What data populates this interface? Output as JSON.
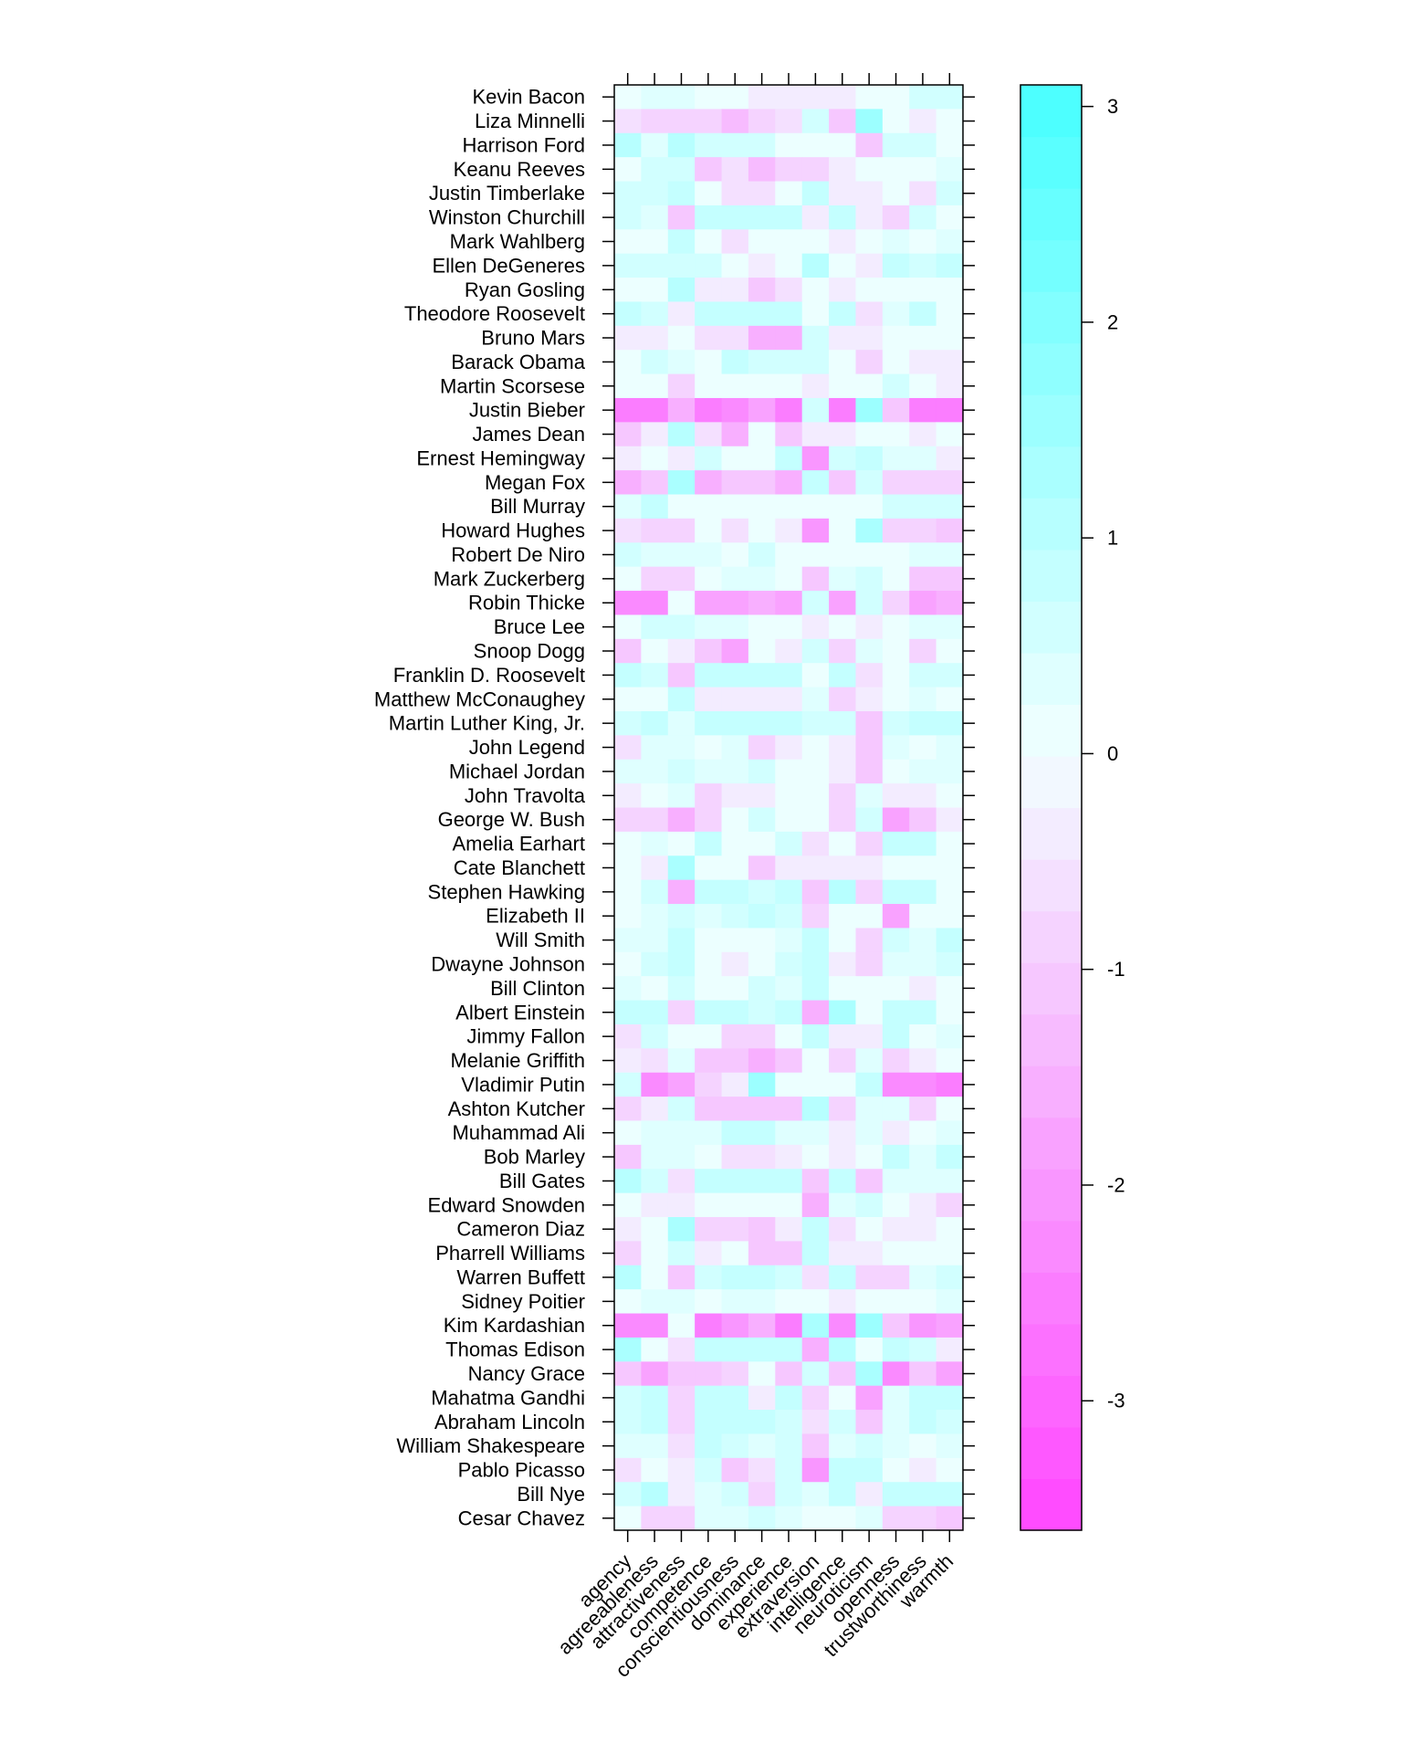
{
  "chart_data": {
    "type": "heatmap",
    "x_categories": [
      "agency",
      "agreeableness",
      "attractiveness",
      "competence",
      "conscientiousness",
      "dominance",
      "experience",
      "extraversion",
      "intelligence",
      "neuroticism",
      "openness",
      "trustworthiness",
      "warmth"
    ],
    "y_categories": [
      "Kevin Bacon",
      "Liza Minnelli",
      "Harrison Ford",
      "Keanu Reeves",
      "Justin Timberlake",
      "Winston Churchill",
      "Mark Wahlberg",
      "Ellen DeGeneres",
      "Ryan Gosling",
      "Theodore Roosevelt",
      "Bruno Mars",
      "Barack Obama",
      "Martin Scorsese",
      "Justin Bieber",
      "James Dean",
      "Ernest Hemingway",
      "Megan Fox",
      "Bill Murray",
      "Howard Hughes",
      "Robert De Niro",
      "Mark Zuckerberg",
      "Robin Thicke",
      "Bruce Lee",
      "Snoop Dogg",
      "Franklin D. Roosevelt",
      "Matthew McConaughey",
      "Martin Luther King, Jr.",
      "John Legend",
      "Michael Jordan",
      "John Travolta",
      "George W. Bush",
      "Amelia Earhart",
      "Cate Blanchett",
      "Stephen Hawking",
      "Elizabeth II",
      "Will Smith",
      "Dwayne Johnson",
      "Bill Clinton",
      "Albert Einstein",
      "Jimmy Fallon",
      "Melanie Griffith",
      "Vladimir Putin",
      "Ashton Kutcher",
      "Muhammad Ali",
      "Bob Marley",
      "Bill Gates",
      "Edward Snowden",
      "Cameron Diaz",
      "Pharrell Williams",
      "Warren Buffett",
      "Sidney Poitier",
      "Kim Kardashian",
      "Thomas Edison",
      "Nancy Grace",
      "Mahatma Gandhi",
      "Abraham Lincoln",
      "William Shakespeare",
      "Pablo Picasso",
      "Bill Nye",
      "Cesar Chavez"
    ],
    "values": [
      [
        0.2,
        0.4,
        0.4,
        0.2,
        0.2,
        -0.3,
        -0.3,
        -0.3,
        -0.3,
        0.2,
        0.2,
        0.5,
        0.7
      ],
      [
        -0.5,
        -0.8,
        -0.8,
        -0.8,
        -1.3,
        -0.8,
        -0.5,
        0.5,
        -1.0,
        1.6,
        0.2,
        -0.3,
        0.2
      ],
      [
        1.0,
        0.4,
        1.0,
        0.5,
        0.5,
        0.5,
        0.2,
        0.2,
        0.2,
        -1.0,
        0.5,
        0.7,
        0.2
      ],
      [
        0.2,
        0.5,
        0.5,
        -1.0,
        -0.5,
        -1.3,
        -0.8,
        -0.8,
        -0.3,
        0.2,
        0.2,
        0.2,
        0.4
      ],
      [
        0.5,
        0.5,
        0.8,
        0.2,
        -0.5,
        -0.5,
        0.2,
        0.8,
        -0.3,
        -0.3,
        0.2,
        -0.5,
        0.5
      ],
      [
        0.5,
        0.4,
        -1.2,
        0.8,
        0.8,
        0.8,
        0.8,
        -0.3,
        0.8,
        -0.3,
        -0.8,
        0.5,
        0.2
      ],
      [
        0.2,
        0.2,
        0.8,
        0.2,
        -0.5,
        0.2,
        0.2,
        0.2,
        -0.3,
        0.2,
        0.4,
        0.2,
        0.4
      ],
      [
        0.7,
        0.7,
        0.5,
        0.5,
        0.2,
        -0.3,
        0.2,
        1.0,
        0.2,
        -0.3,
        0.9,
        0.5,
        0.8
      ],
      [
        0.2,
        0.2,
        1.0,
        -0.3,
        -0.3,
        -1.2,
        -0.5,
        0.2,
        -0.3,
        0.2,
        0.2,
        0.2,
        0.2
      ],
      [
        0.8,
        0.5,
        -0.3,
        0.8,
        0.8,
        0.8,
        0.8,
        0.2,
        0.8,
        -0.5,
        0.4,
        0.8,
        0.2
      ],
      [
        -0.3,
        -0.3,
        0.2,
        -0.5,
        -0.5,
        -1.5,
        -1.5,
        0.5,
        -0.3,
        -0.3,
        0.2,
        0.2,
        0.2
      ],
      [
        0.2,
        0.5,
        0.4,
        0.2,
        0.8,
        0.5,
        0.5,
        0.5,
        0.2,
        -0.8,
        0.2,
        -0.3,
        -0.3
      ],
      [
        0.2,
        0.2,
        -0.8,
        0.2,
        0.2,
        0.2,
        0.2,
        -0.3,
        0.2,
        0.2,
        0.5,
        0.2,
        -0.3
      ],
      [
        -2.6,
        -2.6,
        -1.5,
        -2.5,
        -2.2,
        -1.9,
        -2.5,
        0.5,
        -2.6,
        1.6,
        -1.0,
        -2.6,
        -2.6
      ],
      [
        -1.2,
        -0.3,
        1.0,
        -0.5,
        -1.5,
        0.2,
        -1.0,
        -0.3,
        -0.3,
        0.2,
        0.2,
        -0.3,
        0.2
      ],
      [
        -0.3,
        0.2,
        -0.3,
        0.5,
        0.2,
        0.2,
        0.8,
        -2.0,
        0.5,
        0.8,
        0.4,
        0.4,
        -0.3
      ],
      [
        -1.5,
        -1.2,
        1.4,
        -1.5,
        -1.2,
        -1.2,
        -1.5,
        0.8,
        -1.2,
        0.5,
        -0.8,
        -0.8,
        -0.8
      ],
      [
        0.4,
        0.8,
        0.2,
        0.2,
        0.2,
        0.2,
        0.2,
        0.2,
        0.2,
        0.2,
        0.5,
        0.5,
        0.7
      ],
      [
        -0.5,
        -0.8,
        -0.8,
        0.2,
        -0.5,
        0.2,
        -0.3,
        -2.0,
        0.2,
        1.4,
        -0.8,
        -0.8,
        -1.2
      ],
      [
        0.5,
        0.4,
        0.4,
        0.4,
        0.2,
        0.5,
        0.2,
        0.2,
        0.2,
        0.2,
        0.2,
        0.4,
        0.4
      ],
      [
        0.2,
        -0.8,
        -0.8,
        0.2,
        0.4,
        0.4,
        0.2,
        -1.0,
        0.4,
        0.5,
        0.2,
        -1.0,
        -1.0
      ],
      [
        -2.2,
        -2.2,
        0.2,
        -1.8,
        -1.8,
        -1.6,
        -1.8,
        0.5,
        -1.8,
        0.5,
        -0.8,
        -1.8,
        -1.5
      ],
      [
        0.2,
        0.5,
        0.5,
        0.4,
        0.4,
        0.2,
        0.2,
        -0.3,
        0.2,
        -0.3,
        0.2,
        0.4,
        0.4
      ],
      [
        -1.0,
        0.2,
        -0.3,
        -1.0,
        -1.8,
        0.2,
        -0.3,
        0.5,
        -0.8,
        0.4,
        0.2,
        -0.8,
        0.2
      ],
      [
        0.8,
        0.5,
        -1.0,
        0.8,
        0.8,
        0.8,
        0.8,
        0.2,
        0.8,
        -0.5,
        0.2,
        0.5,
        0.5
      ],
      [
        0.2,
        0.2,
        0.8,
        -0.3,
        -0.3,
        -0.3,
        -0.3,
        0.4,
        -0.8,
        -0.3,
        0.2,
        0.4,
        0.2
      ],
      [
        0.5,
        0.8,
        0.4,
        0.8,
        0.8,
        0.8,
        0.8,
        0.5,
        0.5,
        -1.2,
        0.5,
        0.8,
        0.8
      ],
      [
        -0.5,
        0.4,
        0.4,
        0.2,
        0.4,
        -0.8,
        -0.3,
        0.2,
        -0.3,
        -1.0,
        0.4,
        0.2,
        0.4
      ],
      [
        0.4,
        0.4,
        0.5,
        0.4,
        0.4,
        0.5,
        0.2,
        0.2,
        -0.3,
        -1.0,
        0.2,
        0.4,
        0.4
      ],
      [
        -0.3,
        0.2,
        0.4,
        -0.8,
        -0.3,
        -0.3,
        0.2,
        0.2,
        -0.8,
        0.4,
        -0.3,
        -0.3,
        0.2
      ],
      [
        -0.8,
        -0.8,
        -1.5,
        -0.8,
        0.2,
        0.5,
        0.2,
        0.2,
        -0.8,
        0.5,
        -1.8,
        -1.2,
        -0.3
      ],
      [
        0.2,
        0.4,
        0.2,
        0.8,
        0.2,
        0.2,
        0.5,
        -0.5,
        0.2,
        -0.8,
        0.8,
        0.8,
        0.2
      ],
      [
        0.2,
        -0.3,
        1.4,
        0.2,
        0.2,
        -1.2,
        -0.3,
        -0.3,
        -0.3,
        -0.3,
        0.2,
        0.2,
        0.2
      ],
      [
        0.2,
        0.5,
        -1.5,
        0.8,
        0.8,
        0.5,
        0.8,
        -1.2,
        1.0,
        -0.8,
        0.8,
        0.8,
        0.2
      ],
      [
        0.2,
        0.4,
        0.5,
        0.4,
        0.5,
        0.8,
        0.5,
        -0.8,
        0.2,
        0.2,
        -1.8,
        0.2,
        0.2
      ],
      [
        0.4,
        0.4,
        0.8,
        0.2,
        0.2,
        0.2,
        0.4,
        0.8,
        0.2,
        -0.8,
        0.5,
        0.4,
        0.8
      ],
      [
        0.2,
        0.5,
        0.8,
        0.2,
        -0.3,
        0.2,
        0.5,
        0.8,
        -0.3,
        -0.8,
        0.4,
        0.4,
        0.5
      ],
      [
        0.4,
        0.2,
        0.5,
        0.2,
        0.2,
        0.5,
        0.4,
        0.8,
        0.2,
        0.2,
        0.2,
        -0.3,
        0.2
      ],
      [
        0.8,
        0.8,
        -0.8,
        0.8,
        0.8,
        0.5,
        0.8,
        -1.5,
        1.4,
        0.2,
        0.8,
        0.8,
        0.2
      ],
      [
        -0.5,
        0.5,
        0.2,
        0.2,
        -0.8,
        -0.8,
        0.2,
        0.8,
        -0.3,
        -0.3,
        0.8,
        0.2,
        0.4
      ],
      [
        -0.3,
        -0.5,
        0.4,
        -1.0,
        -1.0,
        -1.5,
        -1.2,
        0.2,
        -0.8,
        0.4,
        -0.8,
        -0.3,
        0.2
      ],
      [
        0.5,
        -2.2,
        -1.8,
        -0.8,
        -0.3,
        1.5,
        0.2,
        0.2,
        0.2,
        0.8,
        -2.2,
        -2.2,
        -2.6
      ],
      [
        -0.8,
        -0.3,
        0.5,
        -1.0,
        -1.2,
        -1.2,
        -1.2,
        1.0,
        -0.8,
        0.4,
        0.4,
        -0.8,
        0.2
      ],
      [
        0.2,
        0.4,
        0.4,
        0.4,
        0.8,
        0.8,
        0.4,
        0.4,
        -0.3,
        0.4,
        -0.3,
        0.2,
        0.4
      ],
      [
        -1.0,
        0.4,
        0.4,
        0.2,
        -0.5,
        -0.5,
        -0.3,
        0.2,
        -0.3,
        0.2,
        0.8,
        0.4,
        0.8
      ],
      [
        1.0,
        0.5,
        -0.5,
        0.8,
        0.8,
        0.8,
        0.8,
        -1.2,
        0.8,
        -1.0,
        0.4,
        0.4,
        0.4
      ],
      [
        0.2,
        -0.3,
        -0.3,
        0.2,
        0.2,
        0.2,
        0.2,
        -1.5,
        0.4,
        0.5,
        0.2,
        -0.3,
        -0.8
      ],
      [
        -0.3,
        0.2,
        1.4,
        -0.8,
        -0.8,
        -1.0,
        -0.3,
        0.8,
        -0.5,
        0.2,
        -0.3,
        -0.3,
        0.2
      ],
      [
        -0.8,
        0.2,
        0.5,
        -0.3,
        0.2,
        -1.0,
        -1.0,
        0.8,
        -0.3,
        -0.3,
        0.2,
        0.2,
        0.2
      ],
      [
        1.0,
        0.2,
        -1.2,
        0.5,
        0.8,
        0.8,
        0.5,
        -0.5,
        0.8,
        -0.8,
        -0.8,
        0.4,
        0.5
      ],
      [
        0.2,
        0.4,
        0.4,
        0.2,
        0.4,
        0.4,
        0.2,
        0.2,
        -0.3,
        0.2,
        0.2,
        0.2,
        0.4
      ],
      [
        -2.2,
        -2.2,
        0.2,
        -2.5,
        -2.0,
        -1.5,
        -2.6,
        1.2,
        -2.2,
        1.5,
        -1.0,
        -2.0,
        -1.8
      ],
      [
        1.2,
        0.2,
        -0.5,
        0.8,
        0.8,
        0.8,
        0.8,
        -1.5,
        1.0,
        0.2,
        0.8,
        0.5,
        -0.3
      ],
      [
        -1.2,
        -1.8,
        -1.2,
        -1.2,
        -0.8,
        0.2,
        -1.2,
        0.5,
        -1.2,
        1.4,
        -2.2,
        -1.2,
        -1.8
      ],
      [
        0.5,
        0.8,
        -0.8,
        0.8,
        0.8,
        -0.3,
        0.8,
        -0.8,
        0.2,
        -1.8,
        0.4,
        0.8,
        0.8
      ],
      [
        0.5,
        0.8,
        -0.8,
        0.8,
        0.8,
        0.8,
        0.5,
        -0.5,
        0.5,
        -1.2,
        0.4,
        0.8,
        0.5
      ],
      [
        0.4,
        0.4,
        -0.5,
        0.8,
        0.5,
        0.4,
        0.5,
        -1.2,
        0.4,
        0.5,
        0.4,
        0.2,
        0.4
      ],
      [
        -0.5,
        0.2,
        -0.3,
        0.5,
        -1.0,
        -0.5,
        0.5,
        -2.0,
        0.8,
        0.8,
        0.2,
        -0.3,
        0.2
      ],
      [
        0.5,
        1.0,
        -0.3,
        0.4,
        0.5,
        -0.8,
        0.5,
        0.4,
        0.8,
        -0.3,
        0.8,
        0.8,
        0.8
      ],
      [
        0.2,
        -0.8,
        -0.8,
        0.4,
        0.4,
        0.5,
        0.4,
        0.2,
        0.2,
        0.4,
        -0.8,
        -0.8,
        -1.2
      ]
    ],
    "colorbar": {
      "ticks": [
        3,
        2,
        1,
        0,
        -1,
        -2,
        -3
      ],
      "tick_labels": [
        "3",
        "2",
        "1",
        "0",
        "-1",
        "-2",
        "-3"
      ],
      "min": -3.6,
      "max": 3.1,
      "low_color": "#FF46FF",
      "mid_color": "#F2FFFF",
      "high_color": "#46FFFF"
    }
  }
}
